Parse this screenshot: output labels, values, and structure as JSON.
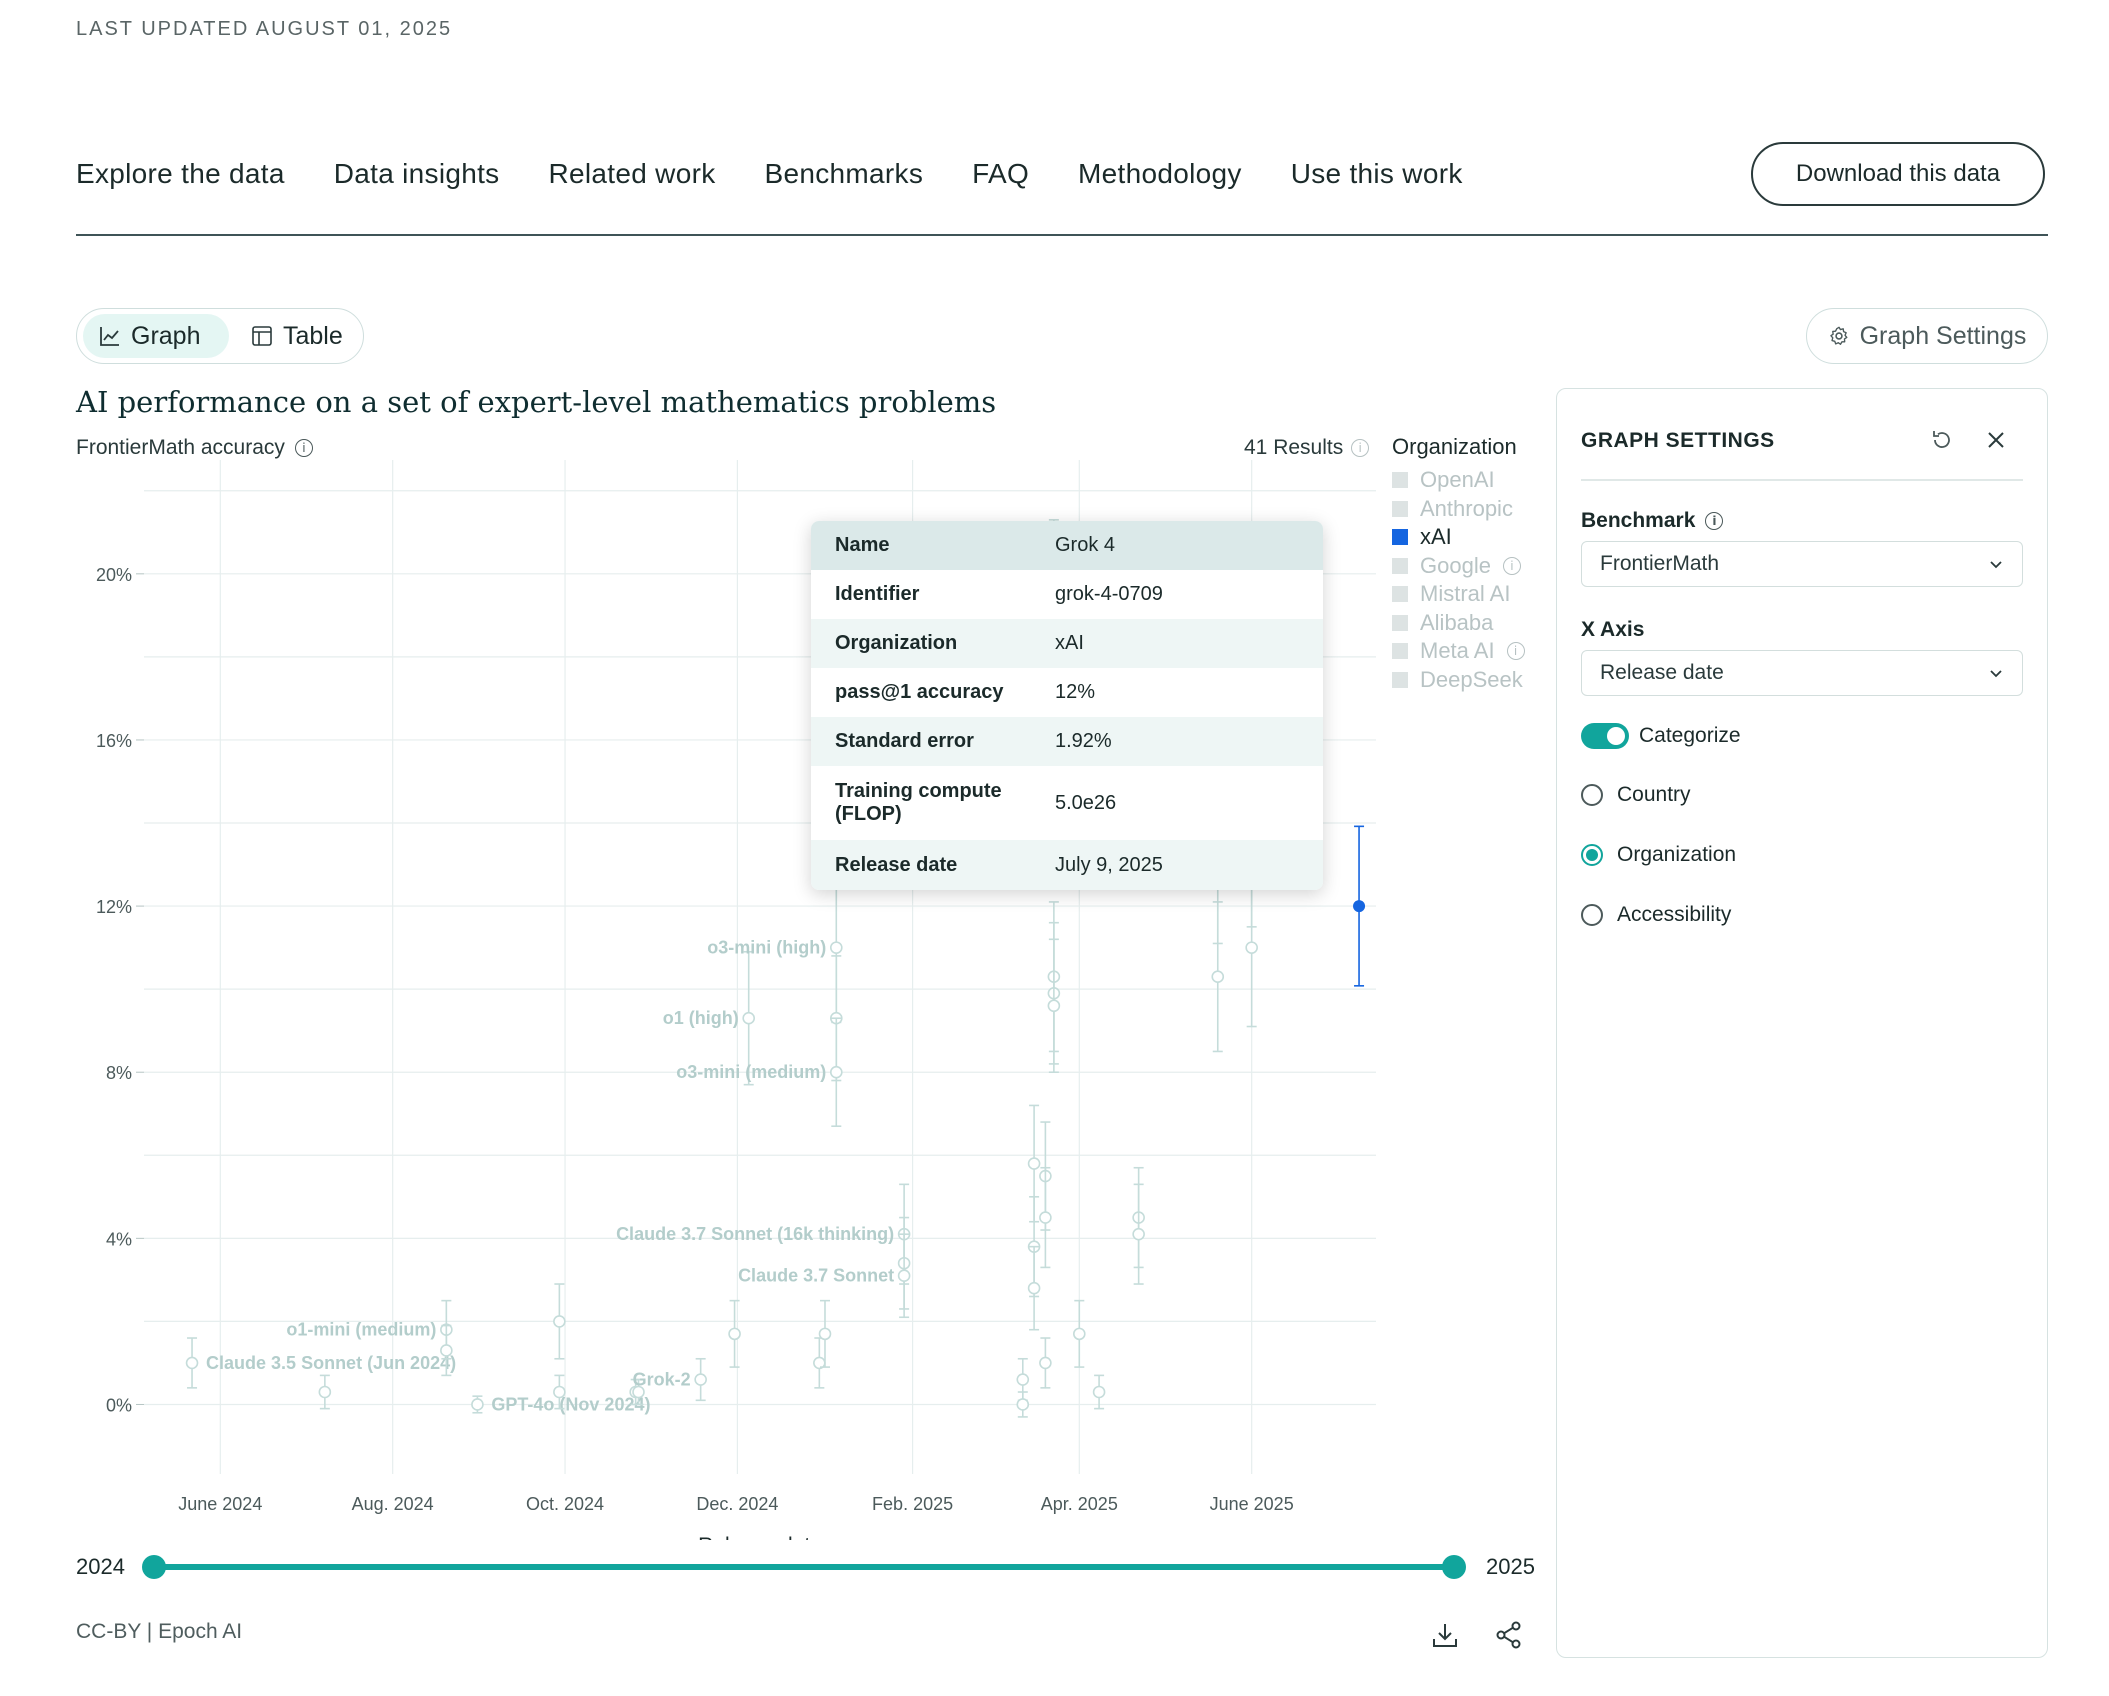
{
  "header": {
    "last_updated": "LAST UPDATED AUGUST 01, 2025"
  },
  "nav": {
    "items": [
      "Explore the data",
      "Data insights",
      "Related work",
      "Benchmarks",
      "FAQ",
      "Methodology",
      "Use this work"
    ],
    "download_label": "Download this data"
  },
  "view_toggle": {
    "graph": "Graph",
    "table": "Table",
    "active": "Graph"
  },
  "graph_settings_button": "Graph Settings",
  "chart_header": {
    "title": "AI performance on a set of expert-level mathematics problems",
    "subtitle": "FrontierMath accuracy",
    "results": "41 Results"
  },
  "legend": {
    "title": "Organization",
    "items": [
      {
        "label": "OpenAI",
        "active": false,
        "info": false
      },
      {
        "label": "Anthropic",
        "active": false,
        "info": false
      },
      {
        "label": "xAI",
        "active": true,
        "info": false
      },
      {
        "label": "Google",
        "active": false,
        "info": true
      },
      {
        "label": "Mistral AI",
        "active": false,
        "info": false
      },
      {
        "label": "Alibaba",
        "active": false,
        "info": false
      },
      {
        "label": "Meta AI",
        "active": false,
        "info": true
      },
      {
        "label": "DeepSeek",
        "active": false,
        "info": false
      }
    ]
  },
  "colors": {
    "accent": "#11a59c",
    "highlight": "#1565e0",
    "faded_point": "#c5dcda",
    "grid": "#e6eeee"
  },
  "chart_data": {
    "type": "scatter",
    "xlabel": "Release date",
    "ylabel": "FrontierMath accuracy",
    "xlim": [
      "2024-05-05",
      "2025-07-15"
    ],
    "ylim": [
      -1,
      22.5
    ],
    "x_ticks": [
      {
        "date": "2024-06-01",
        "label": "June 2024"
      },
      {
        "date": "2024-08-01",
        "label": "Aug. 2024"
      },
      {
        "date": "2024-10-01",
        "label": "Oct. 2024"
      },
      {
        "date": "2024-12-01",
        "label": "Dec. 2024"
      },
      {
        "date": "2025-02-01",
        "label": "Feb. 2025"
      },
      {
        "date": "2025-04-01",
        "label": "Apr. 2025"
      },
      {
        "date": "2025-06-01",
        "label": "June 2025"
      }
    ],
    "y_ticks": [
      {
        "value": 0,
        "label": "0%"
      },
      {
        "value": 4,
        "label": "4%"
      },
      {
        "value": 8,
        "label": "8%"
      },
      {
        "value": 12,
        "label": "12%"
      },
      {
        "value": 16,
        "label": "16%"
      },
      {
        "value": 20,
        "label": "20%"
      }
    ],
    "grid": true,
    "points": [
      {
        "date": "2024-05-22",
        "y": 1.0,
        "err": 0.6,
        "label": "Claude 3.5 Sonnet (Jun 2024)",
        "label_side": "right",
        "highlight": false
      },
      {
        "date": "2024-07-08",
        "y": 0.3,
        "err": 0.4,
        "label": "",
        "highlight": false
      },
      {
        "date": "2024-08-20",
        "y": 1.8,
        "err": 0.7,
        "label": "o1-mini (medium)",
        "label_side": "left",
        "highlight": false
      },
      {
        "date": "2024-08-20",
        "y": 1.3,
        "err": 0.6,
        "label": "",
        "highlight": false
      },
      {
        "date": "2024-08-31",
        "y": 0.0,
        "err": 0.2,
        "label": "GPT-4o (Nov 2024)",
        "label_side": "right",
        "highlight": false
      },
      {
        "date": "2024-09-29",
        "y": 2.0,
        "err": 0.9,
        "label": "",
        "highlight": false
      },
      {
        "date": "2024-09-29",
        "y": 0.3,
        "err": 0.4,
        "label": "",
        "highlight": false
      },
      {
        "date": "2024-10-26",
        "y": 0.3,
        "err": 0.3,
        "label": "",
        "highlight": false
      },
      {
        "date": "2024-10-27",
        "y": 0.3,
        "err": 0.3,
        "label": "",
        "highlight": false
      },
      {
        "date": "2024-11-18",
        "y": 0.6,
        "err": 0.5,
        "label": "Grok-2",
        "label_side": "left",
        "highlight": false
      },
      {
        "date": "2024-11-30",
        "y": 1.7,
        "err": 0.8,
        "label": "",
        "highlight": false
      },
      {
        "date": "2024-12-05",
        "y": 9.3,
        "err": 1.6,
        "label": "o1 (high)",
        "label_side": "left",
        "highlight": false
      },
      {
        "date": "2024-12-30",
        "y": 1.0,
        "err": 0.6,
        "label": "",
        "highlight": false
      },
      {
        "date": "2025-01-01",
        "y": 1.7,
        "err": 0.8,
        "label": "",
        "highlight": false
      },
      {
        "date": "2025-01-05",
        "y": 11.0,
        "err": 1.8,
        "label": "o3-mini (high)",
        "label_side": "left",
        "highlight": false
      },
      {
        "date": "2025-01-05",
        "y": 9.3,
        "err": 1.5,
        "label": "",
        "highlight": false
      },
      {
        "date": "2025-01-05",
        "y": 8.0,
        "err": 1.3,
        "label": "o3-mini (medium)",
        "label_side": "left",
        "highlight": false
      },
      {
        "date": "2025-01-29",
        "y": 4.1,
        "err": 1.2,
        "label": "Claude 3.7 Sonnet (16k thinking)",
        "label_side": "left",
        "highlight": false
      },
      {
        "date": "2025-01-29",
        "y": 3.4,
        "err": 1.1,
        "label": "",
        "highlight": false
      },
      {
        "date": "2025-01-29",
        "y": 3.1,
        "err": 1.0,
        "label": "Claude 3.7 Sonnet",
        "label_side": "left",
        "highlight": false
      },
      {
        "date": "2025-03-12",
        "y": 0.6,
        "err": 0.5,
        "label": "",
        "highlight": false
      },
      {
        "date": "2025-03-12",
        "y": 0.0,
        "err": 0.3,
        "label": "",
        "highlight": false
      },
      {
        "date": "2025-03-16",
        "y": 5.8,
        "err": 1.4,
        "label": "",
        "highlight": false
      },
      {
        "date": "2025-03-16",
        "y": 3.8,
        "err": 1.2,
        "label": "",
        "highlight": false
      },
      {
        "date": "2025-03-16",
        "y": 2.8,
        "err": 1.0,
        "label": "",
        "highlight": false
      },
      {
        "date": "2025-03-20",
        "y": 5.5,
        "err": 1.3,
        "label": "",
        "highlight": false
      },
      {
        "date": "2025-03-20",
        "y": 4.5,
        "err": 1.2,
        "label": "",
        "highlight": false
      },
      {
        "date": "2025-03-20",
        "y": 1.0,
        "err": 0.6,
        "label": "",
        "highlight": false
      },
      {
        "date": "2025-03-23",
        "y": 10.3,
        "err": 1.8,
        "label": "",
        "highlight": false
      },
      {
        "date": "2025-03-23",
        "y": 9.9,
        "err": 1.7,
        "label": "",
        "highlight": false
      },
      {
        "date": "2025-03-23",
        "y": 9.6,
        "err": 1.6,
        "label": "",
        "highlight": false
      },
      {
        "date": "2025-03-23",
        "y": 19.0,
        "err": 2.3,
        "label": "",
        "highlight": false
      },
      {
        "date": "2025-04-01",
        "y": 1.7,
        "err": 0.8,
        "label": "",
        "highlight": false
      },
      {
        "date": "2025-04-08",
        "y": 0.3,
        "err": 0.4,
        "label": "",
        "highlight": false
      },
      {
        "date": "2025-04-22",
        "y": 4.5,
        "err": 1.2,
        "label": "",
        "highlight": false
      },
      {
        "date": "2025-04-22",
        "y": 4.1,
        "err": 1.2,
        "label": "",
        "highlight": false
      },
      {
        "date": "2025-05-20",
        "y": 10.3,
        "err": 1.8,
        "label": "",
        "highlight": false
      },
      {
        "date": "2025-05-20",
        "y": 13.0,
        "err": 1.9,
        "label": "",
        "highlight": false
      },
      {
        "date": "2025-06-01",
        "y": 11.0,
        "err": 1.9,
        "label": "",
        "highlight": false
      },
      {
        "date": "2025-06-01",
        "y": 13.5,
        "err": 2.0,
        "label": "",
        "highlight": false
      },
      {
        "date": "2025-07-09",
        "y": 12.0,
        "err": 1.92,
        "label": "",
        "highlight": true
      }
    ]
  },
  "tooltip": {
    "rows": [
      {
        "key": "Name",
        "value": "Grok 4"
      },
      {
        "key": "Identifier",
        "value": "grok-4-0709"
      },
      {
        "key": "Organization",
        "value": "xAI"
      },
      {
        "key": "pass@1 accuracy",
        "value": "12%"
      },
      {
        "key": "Standard error",
        "value": "1.92%"
      },
      {
        "key": "Training compute (FLOP)",
        "value": "5.0e26"
      },
      {
        "key": "Release date",
        "value": "July 9, 2025"
      }
    ]
  },
  "range_slider": {
    "min_label": "2024",
    "max_label": "2025"
  },
  "credit": "CC-BY | Epoch AI",
  "settings_panel": {
    "title": "GRAPH SETTINGS",
    "benchmark_label": "Benchmark",
    "benchmark_value": "FrontierMath",
    "x_axis_label": "X Axis",
    "x_axis_value": "Release date",
    "categorize_label": "Categorize",
    "categorize_on": true,
    "radios": [
      {
        "label": "Country",
        "checked": false
      },
      {
        "label": "Organization",
        "checked": true
      },
      {
        "label": "Accessibility",
        "checked": false
      }
    ]
  }
}
